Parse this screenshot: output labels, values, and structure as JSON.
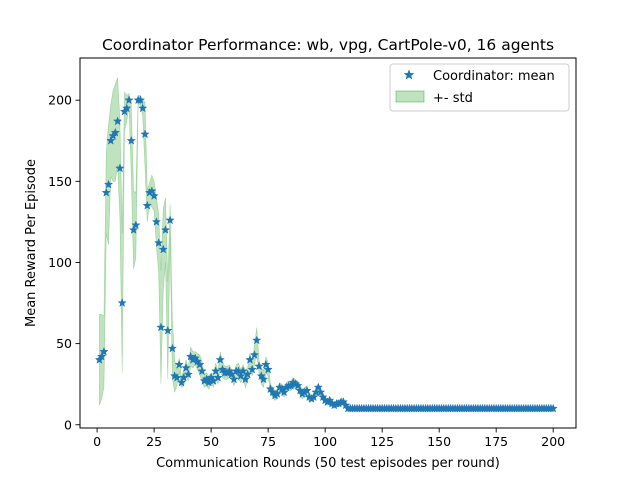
{
  "chart_data": {
    "type": "scatter",
    "title": "Coordinator Performance: wb, vpg, CartPole-v0, 16 agents",
    "xlabel": "Communication Rounds (50 test episodes per round)",
    "ylabel": "Mean Reward Per Episode",
    "xlim": [
      -7.5,
      210
    ],
    "ylim": [
      -2,
      226
    ],
    "xticks": [
      "0",
      "25",
      "50",
      "75",
      "100",
      "125",
      "150",
      "175",
      "200"
    ],
    "yticks": [
      "0",
      "50",
      "100",
      "150",
      "200"
    ],
    "grid": false,
    "legend_position": "top-right",
    "colors": {
      "mean": "#1f77b4",
      "std_fill": "#2ca02c"
    },
    "legend": {
      "mean": "Coordinator: mean",
      "std": "+- std"
    },
    "series": [
      {
        "name": "Coordinator: mean",
        "x": [
          1,
          2,
          3,
          4,
          5,
          6,
          7,
          8,
          9,
          10,
          11,
          12,
          13,
          14,
          15,
          16,
          17,
          18,
          19,
          20,
          21,
          22,
          23,
          24,
          25,
          26,
          27,
          28,
          29,
          30,
          31,
          32,
          33,
          34,
          35,
          36,
          37,
          38,
          39,
          40,
          41,
          42,
          43,
          44,
          45,
          46,
          47,
          48,
          49,
          50,
          51,
          52,
          53,
          54,
          55,
          56,
          57,
          58,
          59,
          60,
          61,
          62,
          63,
          64,
          65,
          66,
          67,
          68,
          69,
          70,
          71,
          72,
          73,
          74,
          75,
          76,
          77,
          78,
          79,
          80,
          81,
          82,
          83,
          84,
          85,
          86,
          87,
          88,
          89,
          90,
          91,
          92,
          93,
          94,
          95,
          96,
          97,
          98,
          99,
          100,
          101,
          102,
          103,
          104,
          105,
          106,
          107,
          108,
          109,
          110,
          111,
          112,
          113,
          114,
          115,
          116,
          117,
          118,
          119,
          120,
          121,
          122,
          123,
          124,
          125,
          126,
          127,
          128,
          129,
          130,
          131,
          132,
          133,
          134,
          135,
          136,
          137,
          138,
          139,
          140,
          141,
          142,
          143,
          144,
          145,
          146,
          147,
          148,
          149,
          150,
          151,
          152,
          153,
          154,
          155,
          156,
          157,
          158,
          159,
          160,
          161,
          162,
          163,
          164,
          165,
          166,
          167,
          168,
          169,
          170,
          171,
          172,
          173,
          174,
          175,
          176,
          177,
          178,
          179,
          180,
          181,
          182,
          183,
          184,
          185,
          186,
          187,
          188,
          189,
          190,
          191,
          192,
          193,
          194,
          195,
          196,
          197,
          198,
          199,
          200
        ],
        "mean": [
          40,
          42,
          45,
          143,
          148,
          175,
          178,
          180,
          187,
          158,
          75,
          193,
          195,
          200,
          175,
          120,
          123,
          200,
          200,
          195,
          179,
          135,
          143,
          144,
          141,
          125,
          112,
          60,
          108,
          120,
          58,
          126,
          47,
          30,
          29,
          37,
          26,
          29,
          35,
          31,
          42,
          40,
          41,
          39,
          37,
          33,
          27,
          28,
          26,
          29,
          27,
          33,
          29,
          40,
          34,
          32,
          32,
          33,
          31,
          28,
          33,
          33,
          30,
          33,
          28,
          31,
          40,
          34,
          43,
          52,
          36,
          30,
          28,
          37,
          34,
          22,
          20,
          18,
          19,
          23,
          22,
          20,
          23,
          24,
          24,
          26,
          25,
          24,
          21,
          19,
          20,
          21,
          17,
          16,
          17,
          20,
          23,
          20,
          17,
          15,
          14,
          15,
          13,
          12,
          13,
          13,
          14,
          14,
          12,
          10,
          10,
          10,
          10,
          10,
          10,
          10,
          10,
          10,
          10,
          10,
          10,
          10,
          10,
          10,
          10,
          10,
          10,
          10,
          10,
          10,
          10,
          10,
          10,
          10,
          10,
          10,
          10,
          10,
          10,
          10,
          10,
          10,
          10,
          10,
          10,
          10,
          10,
          10,
          10,
          10,
          10,
          10,
          10,
          10,
          10,
          10,
          10,
          10,
          10,
          10,
          10,
          10,
          10,
          10,
          10,
          10,
          10,
          10,
          10,
          10,
          10,
          10,
          10,
          10,
          10,
          10,
          10,
          10,
          10,
          10,
          10,
          10,
          10,
          10,
          10,
          10,
          10,
          10,
          10,
          10,
          10,
          10,
          10,
          10,
          10,
          10,
          10,
          10,
          10,
          10
        ],
        "std": [
          28,
          26,
          22,
          25,
          37,
          22,
          28,
          30,
          27,
          30,
          43,
          12,
          8,
          4,
          22,
          24,
          20,
          3,
          3,
          5,
          20,
          10,
          6,
          10,
          9,
          15,
          18,
          35,
          25,
          20,
          30,
          10,
          18,
          10,
          5,
          4,
          3,
          5,
          5,
          4,
          6,
          5,
          4,
          5,
          6,
          6,
          4,
          4,
          4,
          3,
          4,
          5,
          4,
          5,
          5,
          4,
          4,
          4,
          3,
          4,
          4,
          5,
          4,
          4,
          5,
          4,
          4,
          4,
          6,
          8,
          4,
          5,
          5,
          5,
          4,
          3,
          3,
          3,
          3,
          3,
          3,
          3,
          3,
          3,
          3,
          3,
          3,
          3,
          3,
          3,
          3,
          3,
          3,
          2,
          2,
          2,
          2,
          2,
          2,
          2,
          2,
          2,
          2,
          2,
          2,
          2,
          2,
          2,
          1,
          1,
          1,
          1,
          1,
          1,
          1,
          1,
          1,
          1,
          1,
          1,
          1,
          1,
          1,
          1,
          1,
          1,
          1,
          1,
          1,
          1,
          1,
          1,
          1,
          1,
          1,
          1,
          1,
          1,
          1,
          1,
          1,
          1,
          1,
          1,
          1,
          1,
          1,
          1,
          1,
          1,
          1,
          1,
          1,
          1,
          1,
          1,
          1,
          1,
          1,
          1,
          1,
          1,
          1,
          1,
          1,
          1,
          1,
          1,
          1,
          1,
          1,
          1,
          1,
          1,
          1,
          1,
          1,
          1,
          1,
          1,
          1,
          1,
          1,
          1,
          1,
          1,
          1,
          1,
          1,
          1,
          1,
          1,
          1,
          1,
          1,
          1,
          1,
          1,
          1,
          1
        ]
      }
    ]
  }
}
